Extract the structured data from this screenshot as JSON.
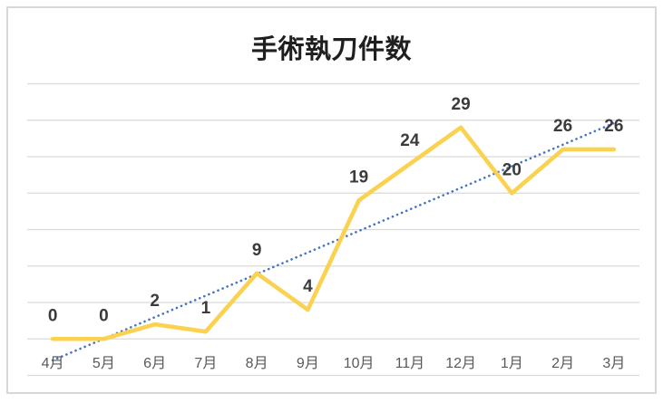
{
  "chart_data": {
    "type": "line",
    "title": "手術執刀件数",
    "categories": [
      "4月",
      "5月",
      "6月",
      "7月",
      "8月",
      "9月",
      "10月",
      "11月",
      "12月",
      "1月",
      "2月",
      "3月"
    ],
    "series": [
      {
        "name": "手術執刀件数",
        "values": [
          0,
          0,
          2,
          1,
          9,
          4,
          19,
          24,
          29,
          20,
          26,
          26
        ]
      }
    ],
    "data_labels": {
      "shown": true,
      "position": "above",
      "values": [
        "0",
        "0",
        "2",
        "1",
        "9",
        "4",
        "19",
        "24",
        "29",
        "20",
        "26",
        "26"
      ]
    },
    "trendline": {
      "type": "linear",
      "style": "dotted"
    },
    "ylim": [
      -5,
      35
    ],
    "gridline_step": 5,
    "grid": true,
    "legend": "none",
    "y_axis_labels": "hidden",
    "colors": {
      "series_line": "#FBD250",
      "trendline": "#4472C4",
      "gridline": "#D9D9D9",
      "title": "#1F1F1F",
      "data_label": "#3B3B3B",
      "axis_label": "#595959",
      "frame_border": "#D7D7D7",
      "background": "#FFFFFF"
    }
  }
}
